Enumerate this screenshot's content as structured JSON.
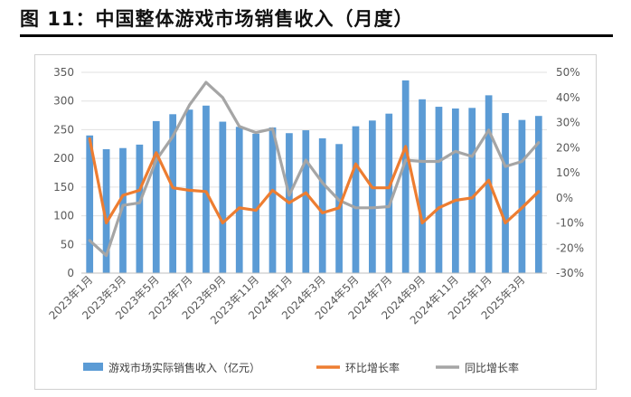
{
  "figure": {
    "title": "图 11：中国整体游戏市场销售收入（月度）"
  },
  "colors": {
    "bar": "#5b9bd5",
    "mom_line": "#ed7d31",
    "yoy_line": "#a5a5a5",
    "grid": "#e0e0e0",
    "axis": "#bfbfbf",
    "tick_text": "#595959"
  },
  "chart_data": {
    "type": "bar",
    "title": "",
    "grid": true,
    "legend_position": "bottom",
    "x": [
      "2023年1月",
      "2023年2月",
      "2023年3月",
      "2023年4月",
      "2023年5月",
      "2023年6月",
      "2023年7月",
      "2023年8月",
      "2023年9月",
      "2023年10月",
      "2023年11月",
      "2023年12月",
      "2024年1月",
      "2024年2月",
      "2024年3月",
      "2024年4月",
      "2024年5月",
      "2024年6月",
      "2024年7月",
      "2024年8月",
      "2024年9月",
      "2024年10月",
      "2024年11月",
      "2024年12月",
      "2025年1月",
      "2025年2月",
      "2025年3月",
      "2025年4月"
    ],
    "x_tick_labels": [
      "2023年1月",
      "2023年3月",
      "2023年5月",
      "2023年7月",
      "2023年9月",
      "2023年11月",
      "2024年1月",
      "2024年3月",
      "2024年5月",
      "2024年7月",
      "2024年9月",
      "2024年11月",
      "2025年1月",
      "2025年3月"
    ],
    "y_left": {
      "range": [
        0,
        350
      ],
      "ticks": [
        "0",
        "50",
        "100",
        "150",
        "200",
        "250",
        "300",
        "350"
      ]
    },
    "y_right": {
      "range": [
        -30,
        50
      ],
      "ticks": [
        "-30%",
        "-20%",
        "-10%",
        "0%",
        "10%",
        "20%",
        "30%",
        "40%",
        "50%"
      ]
    },
    "series": [
      {
        "name": "游戏市场实际销售收入（亿元）",
        "type": "bar",
        "axis": "left",
        "values": [
          240,
          216,
          218,
          224,
          265,
          277,
          285,
          292,
          264,
          255,
          243,
          254,
          244,
          249,
          235,
          225,
          256,
          266,
          278,
          336,
          303,
          290,
          287,
          288,
          310,
          279,
          267,
          274
        ]
      },
      {
        "name": "环比增长率",
        "type": "line",
        "axis": "right",
        "unit": "%",
        "values": [
          23.5,
          -10,
          1,
          3,
          18,
          4,
          3,
          2.5,
          -10,
          -4,
          -5,
          3,
          -2,
          2,
          -6,
          -4,
          13.5,
          4,
          4,
          20.5,
          -10,
          -4,
          -1,
          0,
          7,
          -10,
          -4,
          2.5
        ]
      },
      {
        "name": "同比增长率",
        "type": "line",
        "axis": "right",
        "unit": "%",
        "values": [
          -17,
          -23,
          -3,
          -2,
          15,
          24.5,
          37,
          46,
          40,
          28.5,
          26,
          27.5,
          1,
          15,
          6,
          -1,
          -4,
          -4,
          -3.5,
          15,
          14.5,
          14.5,
          18.5,
          16.5,
          27,
          12.5,
          14.5,
          22
        ]
      }
    ]
  }
}
